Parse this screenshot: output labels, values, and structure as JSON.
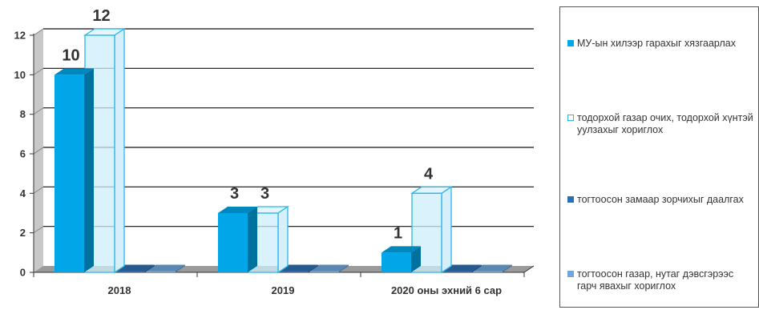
{
  "chart_data": {
    "type": "bar",
    "categories": [
      "2018",
      "2019",
      "2020 оны эхний 6 сар"
    ],
    "series": [
      {
        "name": "МУ-ын хилээр гарахыг хязгаарлах",
        "values": [
          10,
          3,
          1
        ],
        "color": "#00a6e8",
        "style": "solid"
      },
      {
        "name": "тодорхой газар очих, тодорхой хүнтэй уулзахыг хориглох",
        "values": [
          12,
          3,
          4
        ],
        "color": "#29b8ec",
        "style": "outline"
      },
      {
        "name": "тогтоосон замаар зорчихыг даалгах",
        "values": [
          0,
          0,
          0
        ],
        "color": "#2e6fb0",
        "style": "solid"
      },
      {
        "name": "тогтоосон газар, нутаг дэвсгэрээс гарч явахыг хориглох",
        "values": [
          0,
          0,
          0
        ],
        "color": "#6ea6d8",
        "style": "solid"
      }
    ],
    "data_labels": [
      {
        "series": 0,
        "category": 0,
        "text": "10"
      },
      {
        "series": 1,
        "category": 0,
        "text": "12"
      },
      {
        "series": 0,
        "category": 1,
        "text": "3"
      },
      {
        "series": 1,
        "category": 1,
        "text": "3"
      },
      {
        "series": 0,
        "category": 2,
        "text": "1"
      },
      {
        "series": 1,
        "category": 2,
        "text": "4"
      }
    ],
    "yticks": [
      "0",
      "2",
      "4",
      "6",
      "8",
      "10",
      "12"
    ],
    "ylim": [
      0,
      12
    ],
    "grid": true,
    "legend_position": "right",
    "title": "",
    "xlabel": "",
    "ylabel": ""
  }
}
